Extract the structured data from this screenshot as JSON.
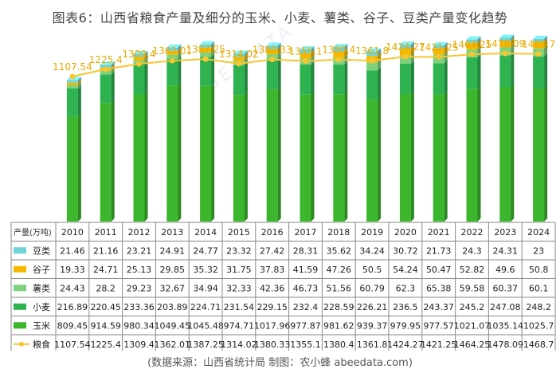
{
  "title": "图表6：山西省粮食产量及细分的玉米、小麦、薯类、谷子、豆类产量变化趋势",
  "footer": "(数据来源：山西省统计局    制图：农小蜂 abeedata.com)",
  "watermark": "BEEDATA",
  "unit_label": "产量(万吨)",
  "colors": {
    "豆类": "#6fd3d8",
    "谷子": "#f5b800",
    "薯类": "#7ed27e",
    "小麦": "#2fb350",
    "玉米": "#3cb62c",
    "粮食": "#f7c631"
  },
  "chart_data": {
    "type": "bar",
    "stacked": true,
    "title": "图表6：山西省粮食产量及细分的玉米、小麦、薯类、谷子、豆类产量变化趋势",
    "categories": [
      "2010",
      "2011",
      "2012",
      "2013",
      "2014",
      "2015",
      "2016",
      "2017",
      "2018",
      "2019",
      "2020",
      "2021",
      "2022",
      "2023",
      "2024"
    ],
    "series": [
      {
        "name": "豆类",
        "type": "bar",
        "values": [
          21.46,
          21.16,
          23.21,
          24.91,
          24.77,
          23.32,
          27.42,
          28.31,
          35.62,
          34.24,
          30.72,
          21.73,
          24.3,
          24.31,
          23
        ]
      },
      {
        "name": "谷子",
        "type": "bar",
        "values": [
          19.33,
          24.71,
          25.13,
          29.85,
          35.32,
          31.75,
          37.83,
          41.59,
          47.26,
          50.5,
          54.24,
          50.47,
          52.82,
          49.6,
          50.8
        ]
      },
      {
        "name": "薯类",
        "type": "bar",
        "values": [
          24.43,
          28.2,
          29.23,
          32.67,
          34.94,
          32.33,
          42.36,
          46.73,
          51.56,
          60.79,
          62.3,
          65.38,
          59.58,
          60.37,
          60.1
        ]
      },
      {
        "name": "小麦",
        "type": "bar",
        "values": [
          216.89,
          220.45,
          233.36,
          203.89,
          224.71,
          231.54,
          229.15,
          232.4,
          228.59,
          226.21,
          236.5,
          243.37,
          245.2,
          247.08,
          248.2
        ]
      },
      {
        "name": "玉米",
        "type": "bar",
        "values": [
          809.45,
          914.59,
          980.34,
          1049.45,
          1045.48,
          974.71,
          1017.96,
          977.87,
          981.62,
          939.37,
          979.95,
          977.57,
          1021.07,
          1035.14,
          1025.7
        ]
      },
      {
        "name": "粮食",
        "type": "line",
        "values": [
          1107.54,
          1225.4,
          1309.4,
          1362.01,
          1387.25,
          1314.02,
          1380.33,
          1355.1,
          1380.4,
          1361.8,
          1424.27,
          1421.25,
          1464.25,
          1478.09,
          1468.7
        ]
      }
    ],
    "line_labels": [
      "1107.54",
      "1225.4",
      "1309.4",
      "1362.01",
      "1387.25",
      "1314.02",
      "1380.33",
      "1355.1",
      "1380.4",
      "1361.8",
      "1424.27",
      "1421.25",
      "1464.25",
      "1478.09",
      "1468.7"
    ],
    "table_rows": [
      {
        "series": "豆类",
        "cells": [
          "21.46",
          "21.16",
          "23.21",
          "24.91",
          "24.77",
          "23.32",
          "27.42",
          "28.31",
          "35.62",
          "34.24",
          "30.72",
          "21.73",
          "24.3",
          "24.31",
          "23"
        ]
      },
      {
        "series": "谷子",
        "cells": [
          "19.33",
          "24.71",
          "25.13",
          "29.85",
          "35.32",
          "31.75",
          "37.83",
          "41.59",
          "47.26",
          "50.5",
          "54.24",
          "50.47",
          "52.82",
          "49.6",
          "50.8"
        ]
      },
      {
        "series": "薯类",
        "cells": [
          "24.43",
          "28.2",
          "29.23",
          "32.67",
          "34.94",
          "32.33",
          "42.36",
          "46.73",
          "51.56",
          "60.79",
          "62.3",
          "65.38",
          "59.58",
          "60.37",
          "60.1"
        ]
      },
      {
        "series": "小麦",
        "cells": [
          "216.89",
          "220.45",
          "233.36",
          "203.89",
          "224.71",
          "231.54",
          "229.15",
          "232.4",
          "228.59",
          "226.21",
          "236.5",
          "243.37",
          "245.2",
          "247.08",
          "248.2"
        ]
      },
      {
        "series": "玉米",
        "cells": [
          "809.45",
          "914.59",
          "980.34",
          "1049.45",
          "1045.48",
          "974.71",
          "1017.96",
          "977.87",
          "981.62",
          "939.37",
          "979.95",
          "977.57",
          "1021.07",
          "1035.14",
          "1025.7"
        ]
      },
      {
        "series": "粮食",
        "cells": [
          "1107.54",
          "1225.4",
          "1309.4",
          "1362.01",
          "1387.25",
          "1314.02",
          "1380.33",
          "1355.1",
          "1380.4",
          "1361.8",
          "1424.27",
          "1421.25",
          "1464.25",
          "1478.09",
          "1468.7"
        ]
      }
    ],
    "ylim": [
      0,
      1600
    ],
    "grid": false,
    "legend": "table-left"
  }
}
